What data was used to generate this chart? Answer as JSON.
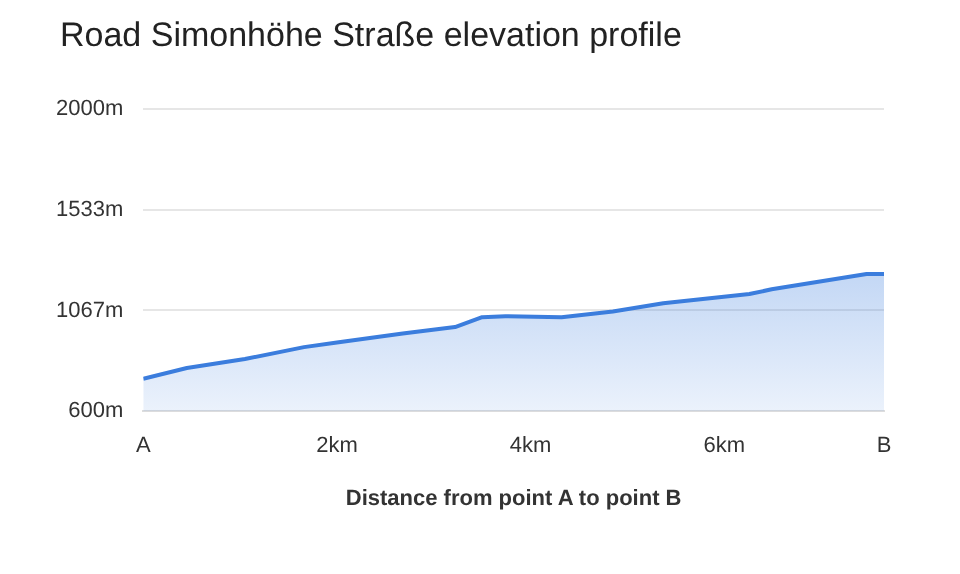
{
  "chart_data": {
    "type": "area",
    "title": "Road Simonhöhe Straße elevation profile",
    "xlabel": "Distance from point A to point B",
    "x": [
      0,
      0.45,
      1.05,
      1.66,
      2.0,
      2.68,
      3.22,
      3.5,
      3.74,
      4.32,
      4.85,
      5.37,
      6.26,
      6.49,
      7.47,
      7.65
    ],
    "series": [
      {
        "color": "#3b7ddd",
        "values": [
          750,
          800,
          842,
          897,
          918,
          960,
          990,
          1036,
          1040,
          1036,
          1062,
          1100,
          1143,
          1165,
          1236,
          1236
        ]
      }
    ],
    "xlim": [
      0,
      7.65
    ],
    "xticks": [
      {
        "value": 0,
        "label": "A"
      },
      {
        "value": 2,
        "label": "2km"
      },
      {
        "value": 4,
        "label": "4km"
      },
      {
        "value": 6,
        "label": "6km"
      },
      {
        "value": 7.65,
        "label": "B"
      }
    ],
    "ylim": [
      600,
      2000
    ],
    "yticks": [
      {
        "value": 600,
        "label": "600m"
      },
      {
        "value": 1067,
        "label": "1067m"
      },
      {
        "value": 1533,
        "label": "1533m"
      },
      {
        "value": 2000,
        "label": "2000m"
      }
    ],
    "grid": "y",
    "legend": false,
    "marker": "none"
  }
}
